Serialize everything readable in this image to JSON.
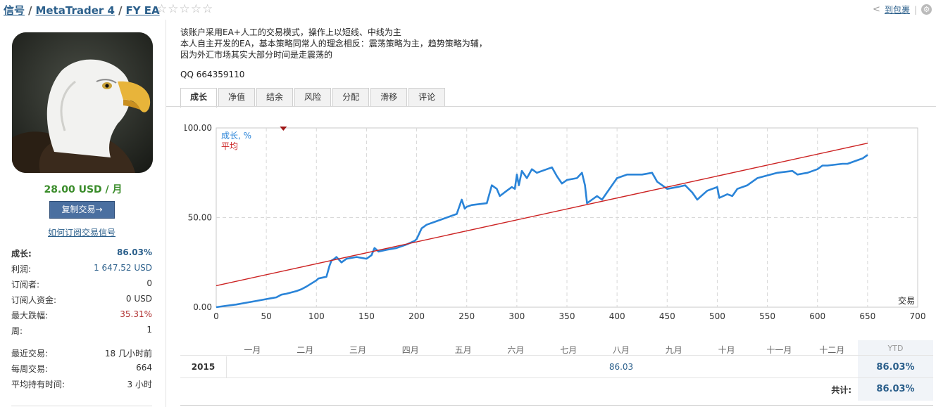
{
  "header": {
    "crumbs": [
      "信号",
      "MetaTrader 4",
      "FY EA"
    ],
    "separator": "/",
    "stars": "☆☆☆☆☆",
    "fav_label": "到包裹",
    "divider": "|"
  },
  "sidebar": {
    "price": "28.00 USD / 月",
    "copy_button": "复制交易→",
    "howto_link": "如何订阅交易信号",
    "stats": [
      {
        "label": "成长:",
        "value": "86.03%"
      },
      {
        "label": "利润:",
        "value": "1 647.52 USD"
      },
      {
        "label": "订阅者:",
        "value": "0"
      },
      {
        "label": "订阅人资金:",
        "value": "0 USD"
      },
      {
        "label": "最大跌幅:",
        "value": "35.31%"
      },
      {
        "label": "周:",
        "value": "1"
      }
    ],
    "stats2": [
      {
        "label": "最近交易:",
        "value": "18 几小时前"
      },
      {
        "label": "每周交易:",
        "value": "664"
      },
      {
        "label": "平均持有时间:",
        "value": "3 小时"
      }
    ]
  },
  "main": {
    "description": [
      "该账户采用EA+人工的交易模式，操作上以短线、中线为主",
      "本人自主开发的EA，基本策略同常人的理念相反：震荡策略为主，趋势策略为辅，",
      "因为外汇市场其实大部分时间是走震荡的"
    ],
    "qq": "QQ 664359110",
    "tabs": [
      "成长",
      "净值",
      "结余",
      "风险",
      "分配",
      "滑移",
      "评论"
    ],
    "active_tab": 0
  },
  "chart_data": {
    "type": "line",
    "xlabel": "交易",
    "ylabel": "",
    "xlim": [
      0,
      700
    ],
    "ylim": [
      0,
      100
    ],
    "x_ticks": [
      "0",
      "50",
      "100",
      "150",
      "200",
      "250",
      "300",
      "350",
      "400",
      "450",
      "500",
      "550",
      "600",
      "650",
      "700"
    ],
    "y_ticks": [
      "0.00",
      "50.00",
      "100.00"
    ],
    "grid": true,
    "legend": "top-left",
    "marker_x": 67,
    "series": [
      {
        "name": "成长, %",
        "color": "#2a84d8",
        "x": [
          0,
          10,
          20,
          30,
          40,
          50,
          60,
          65,
          70,
          80,
          85,
          90,
          100,
          102,
          110,
          113,
          115,
          118,
          120,
          125,
          130,
          140,
          150,
          155,
          158,
          162,
          170,
          180,
          190,
          198,
          200,
          205,
          210,
          220,
          240,
          245,
          248,
          250,
          255,
          270,
          275,
          280,
          283,
          290,
          295,
          298,
          300,
          302,
          305,
          310,
          315,
          320,
          330,
          335,
          340,
          345,
          350,
          360,
          365,
          368,
          370,
          375,
          380,
          385,
          390,
          400,
          410,
          425,
          435,
          440,
          445,
          450,
          460,
          468,
          475,
          480,
          490,
          495,
          500,
          502,
          510,
          515,
          520,
          530,
          540,
          560,
          575,
          580,
          590,
          600,
          605,
          610,
          625,
          630,
          640,
          645,
          650
        ],
        "y": [
          0,
          0.8,
          1.5,
          2.5,
          3.5,
          4.5,
          5.5,
          7,
          7.5,
          9,
          10,
          11.5,
          15,
          16,
          17,
          23,
          26,
          27,
          28,
          25,
          27,
          28,
          27,
          29,
          33,
          31,
          32,
          33,
          35,
          37,
          38,
          44,
          46,
          48,
          52,
          60,
          55,
          56,
          57,
          58,
          68,
          66,
          62,
          65,
          67,
          66,
          74,
          68,
          76,
          72,
          77,
          75,
          77,
          78,
          73,
          69,
          71,
          72,
          75,
          68,
          58,
          60,
          62,
          60,
          64,
          72,
          74,
          74,
          75,
          70,
          68,
          66,
          67,
          68,
          64,
          60,
          65,
          66,
          67,
          61,
          63,
          62,
          66,
          68,
          72,
          75,
          76,
          74,
          75,
          77,
          79,
          79,
          80,
          80,
          82,
          83,
          85
        ]
      },
      {
        "name": "平均",
        "color": "#cc2222",
        "x": [
          0,
          650
        ],
        "y": [
          12,
          91.5
        ]
      }
    ]
  },
  "monthly": {
    "months": [
      "一月",
      "二月",
      "三月",
      "四月",
      "五月",
      "六月",
      "七月",
      "八月",
      "九月",
      "十月",
      "十一月",
      "十二月"
    ],
    "ytd_label": "YTD",
    "year": "2015",
    "year_value": "86.03",
    "year_value_month_index": 7,
    "ytd_value": "86.03%",
    "total_label": "共计:",
    "total_value": "86.03%"
  }
}
